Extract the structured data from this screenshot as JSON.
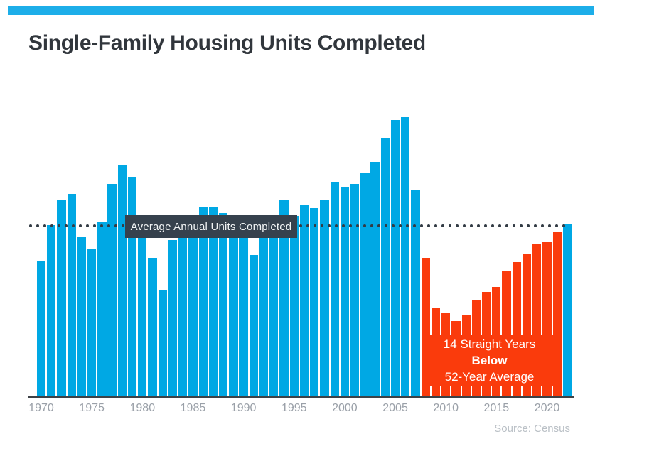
{
  "header": {
    "stripe_color": "#1daee9",
    "title": "Single-Family Housing Units Completed",
    "title_color": "#31363c"
  },
  "chart_data": {
    "type": "bar",
    "title": "Single-Family Housing Units Completed",
    "xlabel": "",
    "ylabel": "",
    "unit_note": "annual single-family housing units completed, thousands (no y-axis shown; values estimated from bar heights)",
    "years": [
      1970,
      1971,
      1972,
      1973,
      1974,
      1975,
      1976,
      1977,
      1978,
      1979,
      1980,
      1981,
      1982,
      1983,
      1984,
      1985,
      1986,
      1987,
      1988,
      1989,
      1990,
      1991,
      1992,
      1993,
      1994,
      1995,
      1996,
      1997,
      1998,
      1999,
      2000,
      2001,
      2002,
      2003,
      2004,
      2005,
      2006,
      2007,
      2008,
      2009,
      2010,
      2011,
      2012,
      2013,
      2014,
      2015,
      2016,
      2017,
      2018,
      2019,
      2020,
      2021,
      2022
    ],
    "values": [
      802,
      1014,
      1160,
      1197,
      940,
      875,
      1034,
      1258,
      1369,
      1301,
      957,
      819,
      632,
      924,
      1025,
      1072,
      1120,
      1123,
      1085,
      1026,
      966,
      838,
      964,
      1039,
      1160,
      1066,
      1129,
      1116,
      1160,
      1270,
      1242,
      1256,
      1325,
      1386,
      1531,
      1636,
      1654,
      1218,
      819,
      520,
      496,
      447,
      483,
      569,
      620,
      648,
      738,
      795,
      840,
      903,
      912,
      971,
      1019
    ],
    "ylim": [
      0,
      1700
    ],
    "grid": false,
    "legend": "none",
    "bar_color_default": "#00a8e4",
    "bar_color_below_streak": "#fa3b0c",
    "below_streak": {
      "start_year": 2008,
      "end_year": 2021
    },
    "average_line": {
      "label": "Average Annual Units Completed",
      "value": 1009,
      "style": "dotted",
      "dot_color": "#323b44",
      "label_bg": "#36414d",
      "label_text_color": "#f2f4f5"
    },
    "annotation": {
      "line1": "14 Straight Years",
      "line2": "Below",
      "line3": "52-Year Average",
      "bg": "#fa3b0c",
      "text_color": "#ffffff"
    },
    "x_ticks": [
      "1970",
      "1975",
      "1980",
      "1985",
      "1990",
      "1995",
      "2000",
      "2005",
      "2010",
      "2015",
      "2020"
    ],
    "tick_color": "#9aa0a8",
    "axis_line_color": "#3d4247",
    "source": "Source: Census",
    "source_color": "#bac0c6"
  }
}
